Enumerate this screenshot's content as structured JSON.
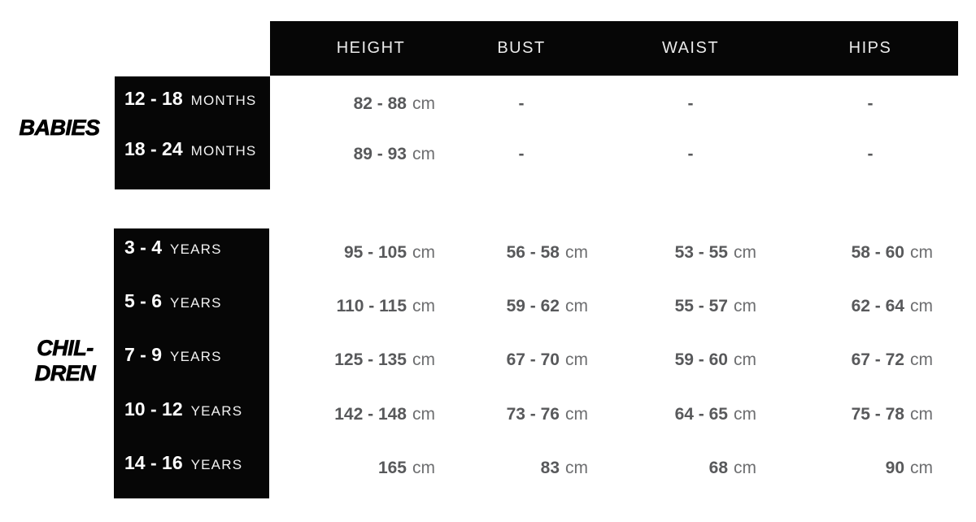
{
  "table": {
    "columns": [
      "HEIGHT",
      "BUST",
      "WAIST",
      "HIPS"
    ],
    "unit": "cm",
    "groups": [
      {
        "label": "BABIES",
        "label_lines": [
          "BABIES"
        ],
        "rows": [
          {
            "age": "12 - 18",
            "age_unit": "MONTHS",
            "height": "82 - 88",
            "bust": "-",
            "waist": "-",
            "hips": "-"
          },
          {
            "age": "18 - 24",
            "age_unit": "MONTHS",
            "height": "89 - 93",
            "bust": "-",
            "waist": "-",
            "hips": "-"
          }
        ]
      },
      {
        "label": "CHILDREN",
        "label_lines": [
          "CHIL-",
          "DREN"
        ],
        "rows": [
          {
            "age": "3 - 4",
            "age_unit": "YEARS",
            "height": "95 - 105",
            "bust": "56 - 58",
            "waist": "53 - 55",
            "hips": "58 - 60"
          },
          {
            "age": "5 - 6",
            "age_unit": "YEARS",
            "height": "110 - 115",
            "bust": "59 - 62",
            "waist": "55 - 57",
            "hips": "62 - 64"
          },
          {
            "age": "7 - 9",
            "age_unit": "YEARS",
            "height": "125 - 135",
            "bust": "67 - 70",
            "waist": "59 - 60",
            "hips": "67 - 72"
          },
          {
            "age": "10 - 12",
            "age_unit": "YEARS",
            "height": "142 - 148",
            "bust": "73 - 76",
            "waist": "64 - 65",
            "hips": "75 - 78"
          },
          {
            "age": "14 - 16",
            "age_unit": "YEARS",
            "height": "165",
            "bust": "83",
            "waist": "68",
            "hips": "90"
          }
        ]
      }
    ]
  },
  "colors": {
    "box_black": "#060606",
    "header_text": "#eaeaea",
    "value_text": "#58595b",
    "unit_text": "#6d6e70",
    "label_text": "#000000",
    "age_text": "#ffffff"
  }
}
